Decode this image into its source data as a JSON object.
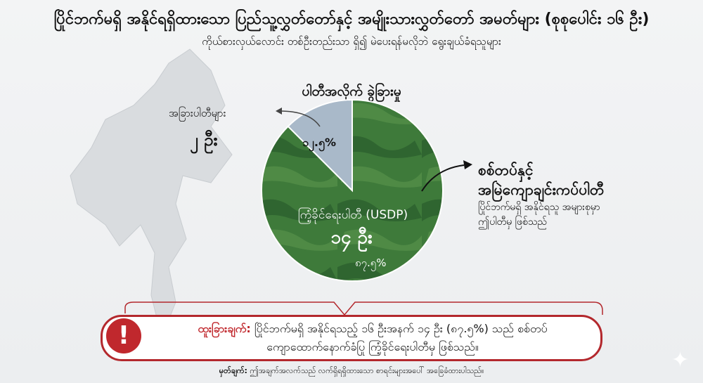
{
  "header": {
    "title": "ပြိုင်ဘက်မရှိ အနိုင်ရရှိထားသော ပြည်သူ့လွှတ်တော်နှင့် အမျိုးသားလွှတ်တော် အမတ်များ (စုစုပေါင်း ၁၆ ဦး)",
    "subtitle": "ကိုယ်စားလှယ်လောင်း တစ်ဦးတည်းသာ ရှိ၍ မဲပေးရန်မလိုဘဲ ရွေးချယ်ခံရသူများ"
  },
  "chart_data": {
    "type": "pie",
    "title": "ပါတီအလိုက် ခွဲခြားမှု",
    "total": 16,
    "slices": [
      {
        "label": "ကြံ့ခိုင်ရေးပါတီ (USDP)",
        "count_label": "၁၄ ဦး",
        "value": 14,
        "percent_label": "၈၇.၅%",
        "percent": 87.5,
        "color": "#3e7a3a"
      },
      {
        "label": "အခြားပါတီများ",
        "count_label": "၂ ဦး",
        "value": 2,
        "percent_label": "၁၂.၅%",
        "percent": 12.5,
        "color": "#a9b9c9"
      }
    ]
  },
  "annotation": {
    "title": "စစ်တပ်နှင့် အမြဲကျောချင်းကပ်ပါတီ",
    "title_line1": "စစ်တပ်နှင့်",
    "title_line2": "အမြဲကျောချင်းကပ်ပါတီ",
    "desc_line1": "ပြိုင်ဘက်မရှိ အနိုင်ရသူ အများစုမှာ",
    "desc_line2": "ဤပါတီမှ ဖြစ်သည်"
  },
  "callout": {
    "label": "ထူးခြားချက်:",
    "line1": " ပြိုင်ဘက်မရှိ အနိုင်ရသည့် ၁၆ ဦးအနက် ၁၄ ဦး (၈၇.၅%) သည် စစ်တပ်",
    "line2": "ကျောထောက်နောက်ခံပြု ကြံ့ခိုင်ရေးပါတီမှ ဖြစ်သည်။",
    "icon": "exclamation-icon",
    "accent": "#c0282d"
  },
  "footer": {
    "note_label": "မှတ်ချက်:",
    "note_text": " ဤအချက်အလက်သည် လက်ရှိရရှိထားသော စာရင်းများအပေါ် အခြေခံထားပါသည်။"
  }
}
